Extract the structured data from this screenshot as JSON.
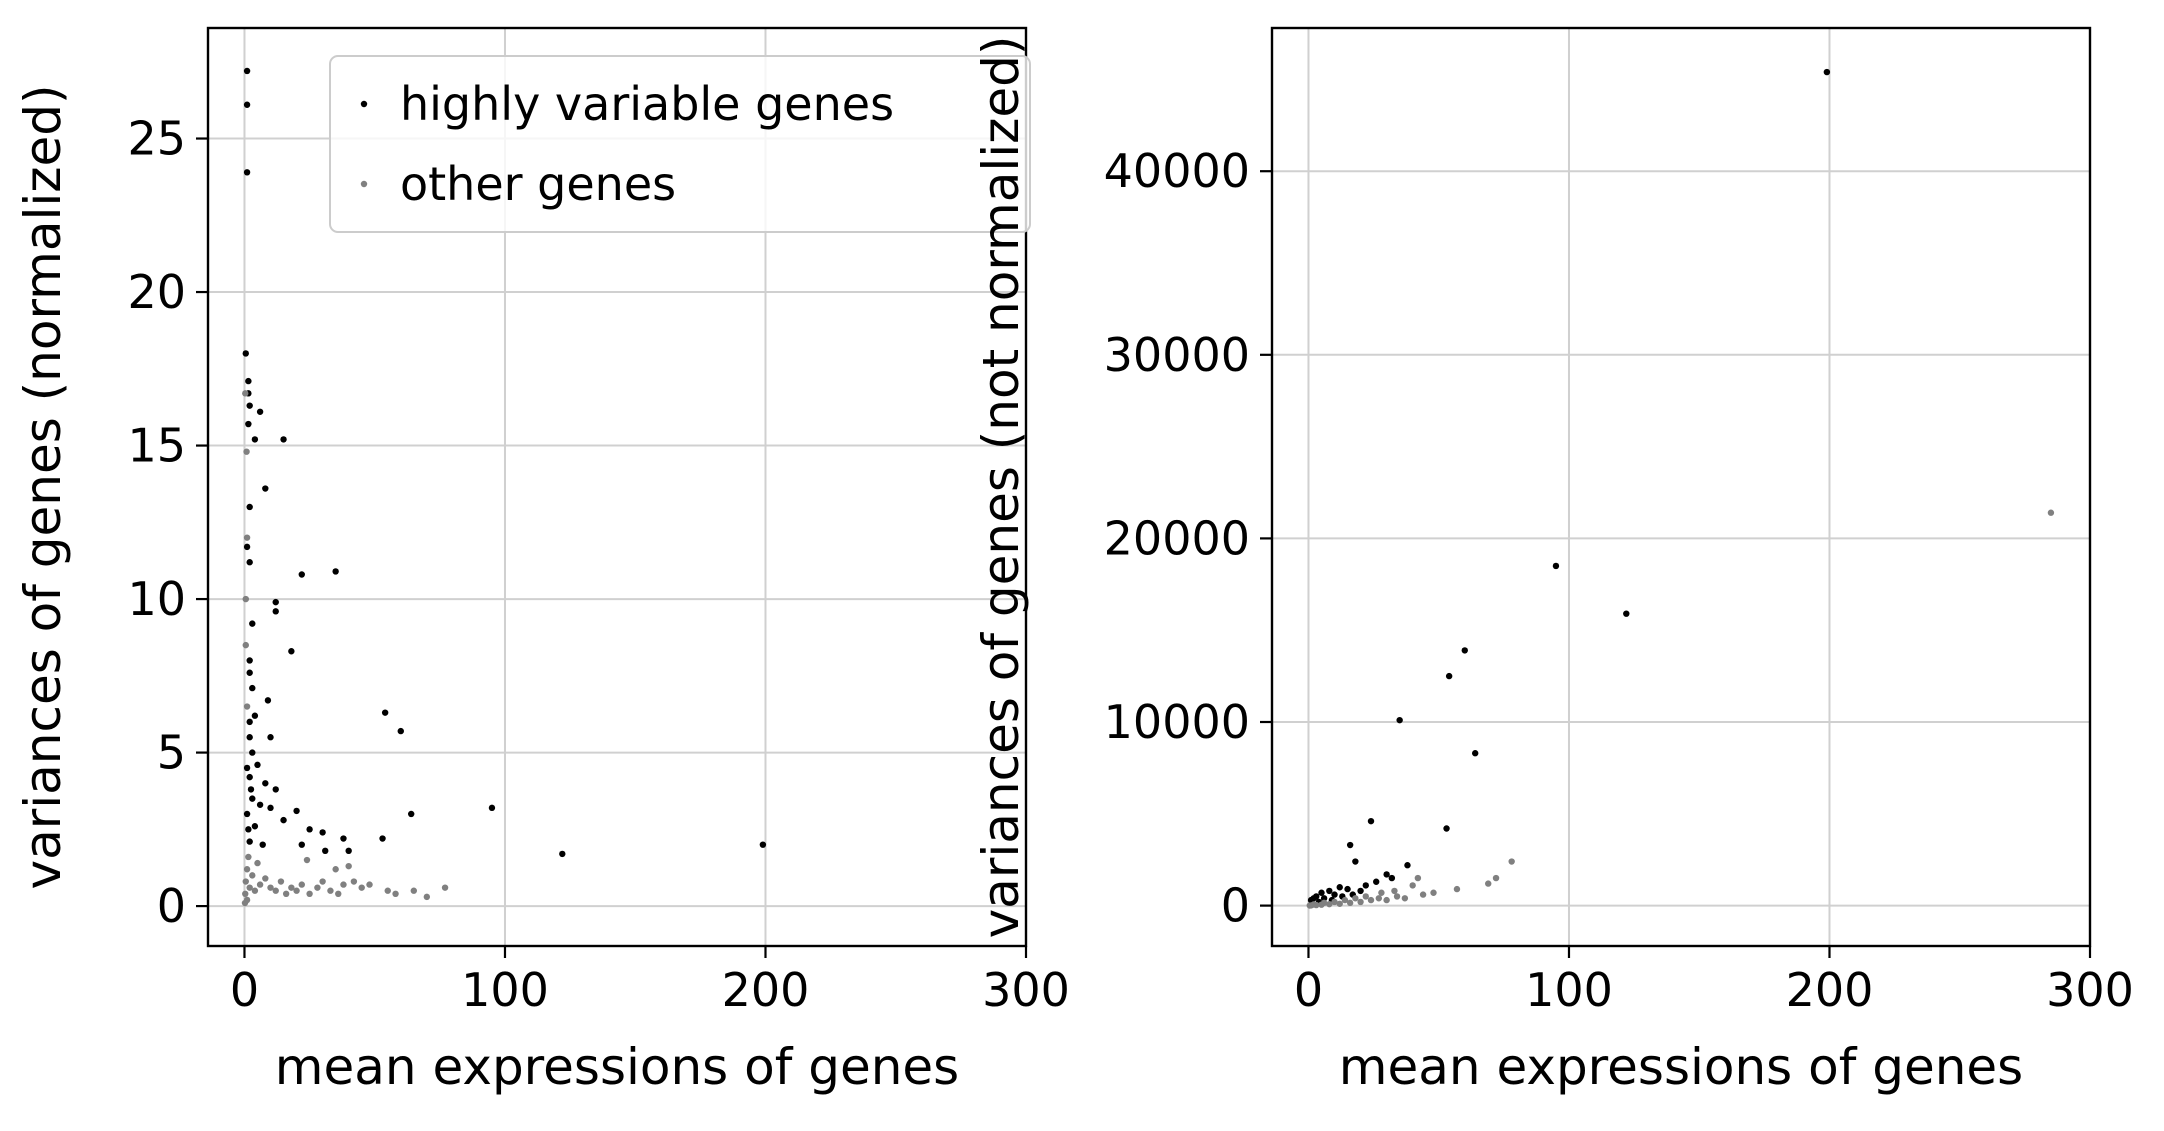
{
  "colors": {
    "highly_variable": "#000000",
    "other": "#808080",
    "grid": "#d0d0d0"
  },
  "chart_data": [
    {
      "type": "scatter",
      "xlabel": "mean expressions of genes",
      "ylabel": "variances of genes (normalized)",
      "xlim": [
        -14,
        300
      ],
      "ylim": [
        -1.3,
        28.6
      ],
      "xticks": [
        0,
        100,
        200,
        300
      ],
      "yticks": [
        0,
        5,
        10,
        15,
        20,
        25
      ],
      "grid": true,
      "legend": {
        "placement": "top-right",
        "entries": [
          "highly variable genes",
          "other genes"
        ]
      },
      "series": [
        {
          "name": "highly variable genes",
          "color": "#000000",
          "points": [
            [
              1,
              27.2
            ],
            [
              1,
              26.1
            ],
            [
              1,
              23.9
            ],
            [
              0.5,
              18.0
            ],
            [
              1.5,
              17.1
            ],
            [
              1.5,
              16.7
            ],
            [
              2,
              16.3
            ],
            [
              6,
              16.1
            ],
            [
              1.5,
              15.7
            ],
            [
              4,
              15.2
            ],
            [
              15,
              15.2
            ],
            [
              8,
              13.6
            ],
            [
              2,
              13.0
            ],
            [
              1,
              11.7
            ],
            [
              2,
              11.2
            ],
            [
              22,
              10.8
            ],
            [
              35,
              10.9
            ],
            [
              12,
              9.9
            ],
            [
              12,
              9.6
            ],
            [
              3,
              9.2
            ],
            [
              18,
              8.3
            ],
            [
              2,
              8.0
            ],
            [
              2,
              7.6
            ],
            [
              3,
              7.1
            ],
            [
              9,
              6.7
            ],
            [
              4,
              6.2
            ],
            [
              2,
              6.0
            ],
            [
              54,
              6.3
            ],
            [
              60,
              5.7
            ],
            [
              10,
              5.5
            ],
            [
              3,
              5.0
            ],
            [
              5,
              4.6
            ],
            [
              2,
              4.2
            ],
            [
              8,
              4.0
            ],
            [
              12,
              3.8
            ],
            [
              3,
              3.5
            ],
            [
              6,
              3.3
            ],
            [
              10,
              3.2
            ],
            [
              20,
              3.1
            ],
            [
              95,
              3.2
            ],
            [
              64,
              3.0
            ],
            [
              15,
              2.8
            ],
            [
              4,
              2.6
            ],
            [
              25,
              2.5
            ],
            [
              30,
              2.4
            ],
            [
              38,
              2.2
            ],
            [
              53,
              2.2
            ],
            [
              2,
              2.1
            ],
            [
              7,
              2.0
            ],
            [
              22,
              2.0
            ],
            [
              31,
              1.8
            ],
            [
              40,
              1.8
            ],
            [
              199,
              2.0
            ],
            [
              122,
              1.7
            ],
            [
              1,
              3.0
            ],
            [
              1.5,
              2.5
            ],
            [
              2.5,
              3.8
            ],
            [
              1,
              4.5
            ],
            [
              2,
              5.5
            ]
          ]
        },
        {
          "name": "other genes",
          "color": "#808080",
          "points": [
            [
              0.3,
              0.4
            ],
            [
              0.5,
              0.8
            ],
            [
              1,
              1.2
            ],
            [
              1.5,
              1.6
            ],
            [
              2,
              0.6
            ],
            [
              3,
              1.0
            ],
            [
              4,
              0.5
            ],
            [
              5,
              1.4
            ],
            [
              6,
              0.7
            ],
            [
              8,
              0.9
            ],
            [
              10,
              0.6
            ],
            [
              12,
              0.5
            ],
            [
              14,
              0.8
            ],
            [
              16,
              0.4
            ],
            [
              18,
              0.6
            ],
            [
              20,
              0.5
            ],
            [
              22,
              0.7
            ],
            [
              25,
              0.4
            ],
            [
              28,
              0.6
            ],
            [
              30,
              0.8
            ],
            [
              33,
              0.5
            ],
            [
              36,
              0.4
            ],
            [
              38,
              0.7
            ],
            [
              40,
              1.3
            ],
            [
              42,
              0.8
            ],
            [
              45,
              0.6
            ],
            [
              48,
              0.7
            ],
            [
              55,
              0.5
            ],
            [
              58,
              0.4
            ],
            [
              65,
              0.5
            ],
            [
              70,
              0.3
            ],
            [
              77,
              0.6
            ],
            [
              0.5,
              10.0
            ],
            [
              0.8,
              14.8
            ],
            [
              1,
              12.0
            ],
            [
              0.5,
              8.5
            ],
            [
              1,
              6.5
            ],
            [
              0.3,
              16.7
            ],
            [
              1,
              0.2
            ],
            [
              0.2,
              0.1
            ],
            [
              24,
              1.5
            ],
            [
              35,
              1.2
            ]
          ]
        }
      ]
    },
    {
      "type": "scatter",
      "xlabel": "mean expressions of genes",
      "ylabel": "variances of genes (not normalized)",
      "xlim": [
        -14,
        300
      ],
      "ylim": [
        -2200,
        47800
      ],
      "xticks": [
        0,
        100,
        200,
        300
      ],
      "yticks": [
        0,
        10000,
        20000,
        30000,
        40000
      ],
      "grid": true,
      "series": [
        {
          "name": "highly variable genes",
          "color": "#000000",
          "points": [
            [
              199,
              45400
            ],
            [
              95,
              18500
            ],
            [
              122,
              15900
            ],
            [
              60,
              13900
            ],
            [
              54,
              12500
            ],
            [
              35,
              10100
            ],
            [
              64,
              8300
            ],
            [
              24,
              4600
            ],
            [
              53,
              4200
            ],
            [
              16,
              3300
            ],
            [
              18,
              2400
            ],
            [
              38,
              2200
            ],
            [
              30,
              1700
            ],
            [
              22,
              1100
            ],
            [
              12,
              1000
            ],
            [
              8,
              800
            ],
            [
              5,
              700
            ],
            [
              3,
              500
            ],
            [
              2,
              400
            ],
            [
              10,
              600
            ],
            [
              15,
              900
            ],
            [
              26,
              1300
            ],
            [
              32,
              1500
            ],
            [
              20,
              800
            ],
            [
              6,
              400
            ],
            [
              1,
              300
            ],
            [
              4,
              200
            ],
            [
              9,
              300
            ],
            [
              13,
              500
            ],
            [
              17,
              600
            ]
          ]
        },
        {
          "name": "other genes",
          "color": "#808080",
          "points": [
            [
              285,
              21400
            ],
            [
              78,
              2400
            ],
            [
              72,
              1500
            ],
            [
              69,
              1200
            ],
            [
              57,
              900
            ],
            [
              48,
              700
            ],
            [
              44,
              600
            ],
            [
              40,
              1100
            ],
            [
              37,
              400
            ],
            [
              34,
              500
            ],
            [
              30,
              300
            ],
            [
              27,
              400
            ],
            [
              24,
              300
            ],
            [
              20,
              200
            ],
            [
              16,
              150
            ],
            [
              12,
              100
            ],
            [
              8,
              80
            ],
            [
              5,
              50
            ],
            [
              3,
              30
            ],
            [
              1,
              10
            ],
            [
              0.5,
              5
            ],
            [
              42,
              1500
            ],
            [
              33,
              800
            ],
            [
              28,
              700
            ],
            [
              22,
              500
            ],
            [
              18,
              400
            ],
            [
              14,
              300
            ],
            [
              10,
              200
            ],
            [
              6,
              150
            ],
            [
              2,
              60
            ]
          ]
        }
      ]
    }
  ]
}
